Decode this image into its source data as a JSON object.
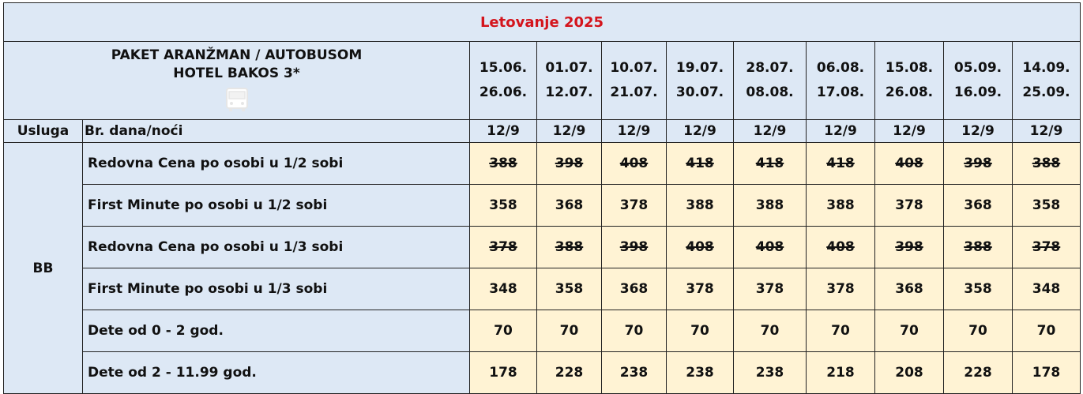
{
  "title": "Letovanje 2025",
  "package": {
    "line1": "PAKET ARANŽMAN / AUTOBUSOM",
    "line2": "HOTEL BAKOS 3*",
    "icon": "bus-icon"
  },
  "periods": [
    {
      "from": "15.06.",
      "to": "26.06."
    },
    {
      "from": "01.07.",
      "to": "12.07."
    },
    {
      "from": "10.07.",
      "to": "21.07."
    },
    {
      "from": "19.07.",
      "to": "30.07."
    },
    {
      "from": "28.07.",
      "to": "08.08."
    },
    {
      "from": "06.08.",
      "to": "17.08."
    },
    {
      "from": "15.08.",
      "to": "26.08."
    },
    {
      "from": "05.09.",
      "to": "16.09."
    },
    {
      "from": "14.09.",
      "to": "25.09."
    }
  ],
  "subheader": {
    "service_label": "Usluga",
    "nights_label": "Br. dana/noći",
    "nights": [
      "12/9",
      "12/9",
      "12/9",
      "12/9",
      "12/9",
      "12/9",
      "12/9",
      "12/9",
      "12/9"
    ]
  },
  "service": "BB",
  "rows": [
    {
      "label": "Redovna Cena po osobi u 1/2 sobi",
      "strikethrough": true,
      "values": [
        "388",
        "398",
        "408",
        "418",
        "418",
        "418",
        "408",
        "398",
        "388"
      ]
    },
    {
      "label": "First Minute po osobi u 1/2 sobi",
      "strikethrough": false,
      "values": [
        "358",
        "368",
        "378",
        "388",
        "388",
        "388",
        "378",
        "368",
        "358"
      ]
    },
    {
      "label": "Redovna Cena po osobi u 1/3 sobi",
      "strikethrough": true,
      "values": [
        "378",
        "388",
        "398",
        "408",
        "408",
        "408",
        "398",
        "388",
        "378"
      ]
    },
    {
      "label": "First Minute po osobi u 1/3 sobi",
      "strikethrough": false,
      "values": [
        "348",
        "358",
        "368",
        "378",
        "378",
        "378",
        "368",
        "358",
        "348"
      ]
    },
    {
      "label": "Dete od 0 - 2 god.",
      "strikethrough": false,
      "values": [
        "70",
        "70",
        "70",
        "70",
        "70",
        "70",
        "70",
        "70",
        "70"
      ]
    },
    {
      "label": "Dete od 2 - 11.99 god.",
      "strikethrough": false,
      "values": [
        "178",
        "228",
        "238",
        "238",
        "238",
        "218",
        "208",
        "228",
        "178"
      ]
    }
  ],
  "colors": {
    "header_bg": "#dde8f5",
    "value_bg": "#fff3d4",
    "title_color": "#d4141c"
  }
}
